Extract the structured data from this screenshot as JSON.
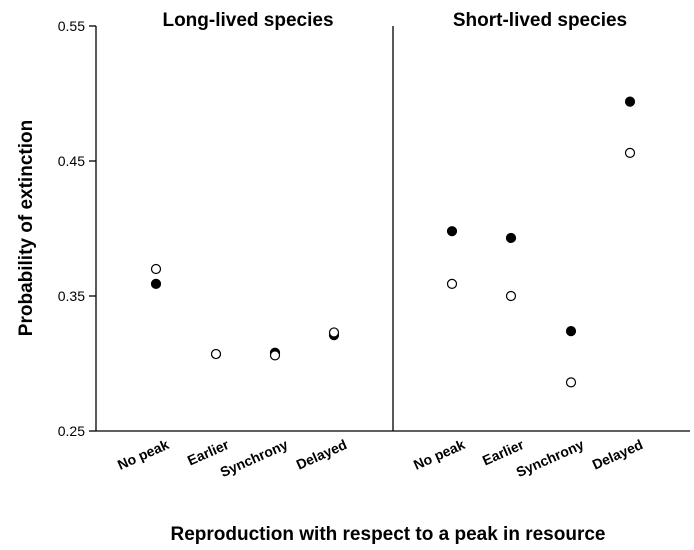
{
  "chart_data": {
    "type": "scatter",
    "ylabel": "Probability of extinction",
    "xlabel": "Reproduction with respect to a peak in resource",
    "ylim": [
      0.25,
      0.55
    ],
    "yticks": [
      "0.25",
      "0.35",
      "0.45",
      "0.55"
    ],
    "grid": false,
    "panels": [
      {
        "title": "Long-lived species",
        "categories": [
          "No peak",
          "Earlier",
          "Synchrony",
          "Delayed"
        ],
        "series": [
          {
            "marker": "filled",
            "values": [
              0.359,
              0.307,
              0.308,
              0.321
            ]
          },
          {
            "marker": "open",
            "values": [
              0.37,
              0.307,
              0.306,
              0.323
            ]
          }
        ]
      },
      {
        "title": "Short-lived species",
        "categories": [
          "No peak",
          "Earlier",
          "Synchrony",
          "Delayed"
        ],
        "series": [
          {
            "marker": "filled",
            "values": [
              0.398,
              0.393,
              0.324,
              0.494
            ]
          },
          {
            "marker": "open",
            "values": [
              0.359,
              0.35,
              0.286,
              0.456
            ]
          }
        ]
      }
    ]
  }
}
